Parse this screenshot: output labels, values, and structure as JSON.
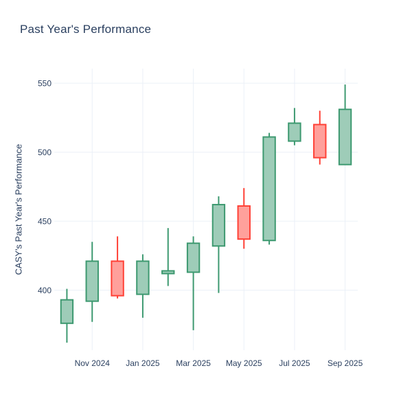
{
  "chart_data": {
    "type": "candlestick",
    "title": "Past Year's Performance",
    "xlabel": "",
    "ylabel": "CASY's Past Year's Performance",
    "x_tick_labels": [
      "Nov 2024",
      "Jan 2025",
      "Mar 2025",
      "May 2025",
      "Jul 2025",
      "Sep 2025"
    ],
    "y_ticks": [
      400,
      450,
      500,
      550
    ],
    "ylim": [
      356.5,
      560.5
    ],
    "grid": true,
    "legend_visible": false,
    "candles": [
      {
        "x": "Oct 2024",
        "open": 376,
        "high": 401,
        "low": 362,
        "close": 393
      },
      {
        "x": "Nov 2024",
        "open": 392,
        "high": 435,
        "low": 377,
        "close": 421
      },
      {
        "x": "Dec 2024",
        "open": 421,
        "high": 439,
        "low": 394,
        "close": 396
      },
      {
        "x": "Jan 2025",
        "open": 397,
        "high": 426,
        "low": 380,
        "close": 421
      },
      {
        "x": "Feb 2025",
        "open": 412,
        "high": 445,
        "low": 403,
        "close": 414
      },
      {
        "x": "Mar 2025",
        "open": 413,
        "high": 439,
        "low": 371,
        "close": 434
      },
      {
        "x": "Apr 2025",
        "open": 432,
        "high": 468,
        "low": 398,
        "close": 462
      },
      {
        "x": "May 2025",
        "open": 461,
        "high": 474,
        "low": 430,
        "close": 437
      },
      {
        "x": "Jun 2025",
        "open": 436,
        "high": 514,
        "low": 433,
        "close": 511
      },
      {
        "x": "Jul 2025",
        "open": 508,
        "high": 532,
        "low": 505,
        "close": 521
      },
      {
        "x": "Aug 2025",
        "open": 520,
        "high": 530,
        "low": 491,
        "close": 496
      },
      {
        "x": "Sep 2025",
        "open": 491,
        "high": 549,
        "low": 491,
        "close": 531
      }
    ],
    "colors": {
      "increasing_line": "#3D9970",
      "increasing_fill": "#9ECCB8",
      "decreasing_line": "#FF4136",
      "decreasing_fill": "#FFA09B",
      "grid": "#EBF0F8",
      "text": "#2A3F5F",
      "background": "#FFFFFF"
    }
  }
}
